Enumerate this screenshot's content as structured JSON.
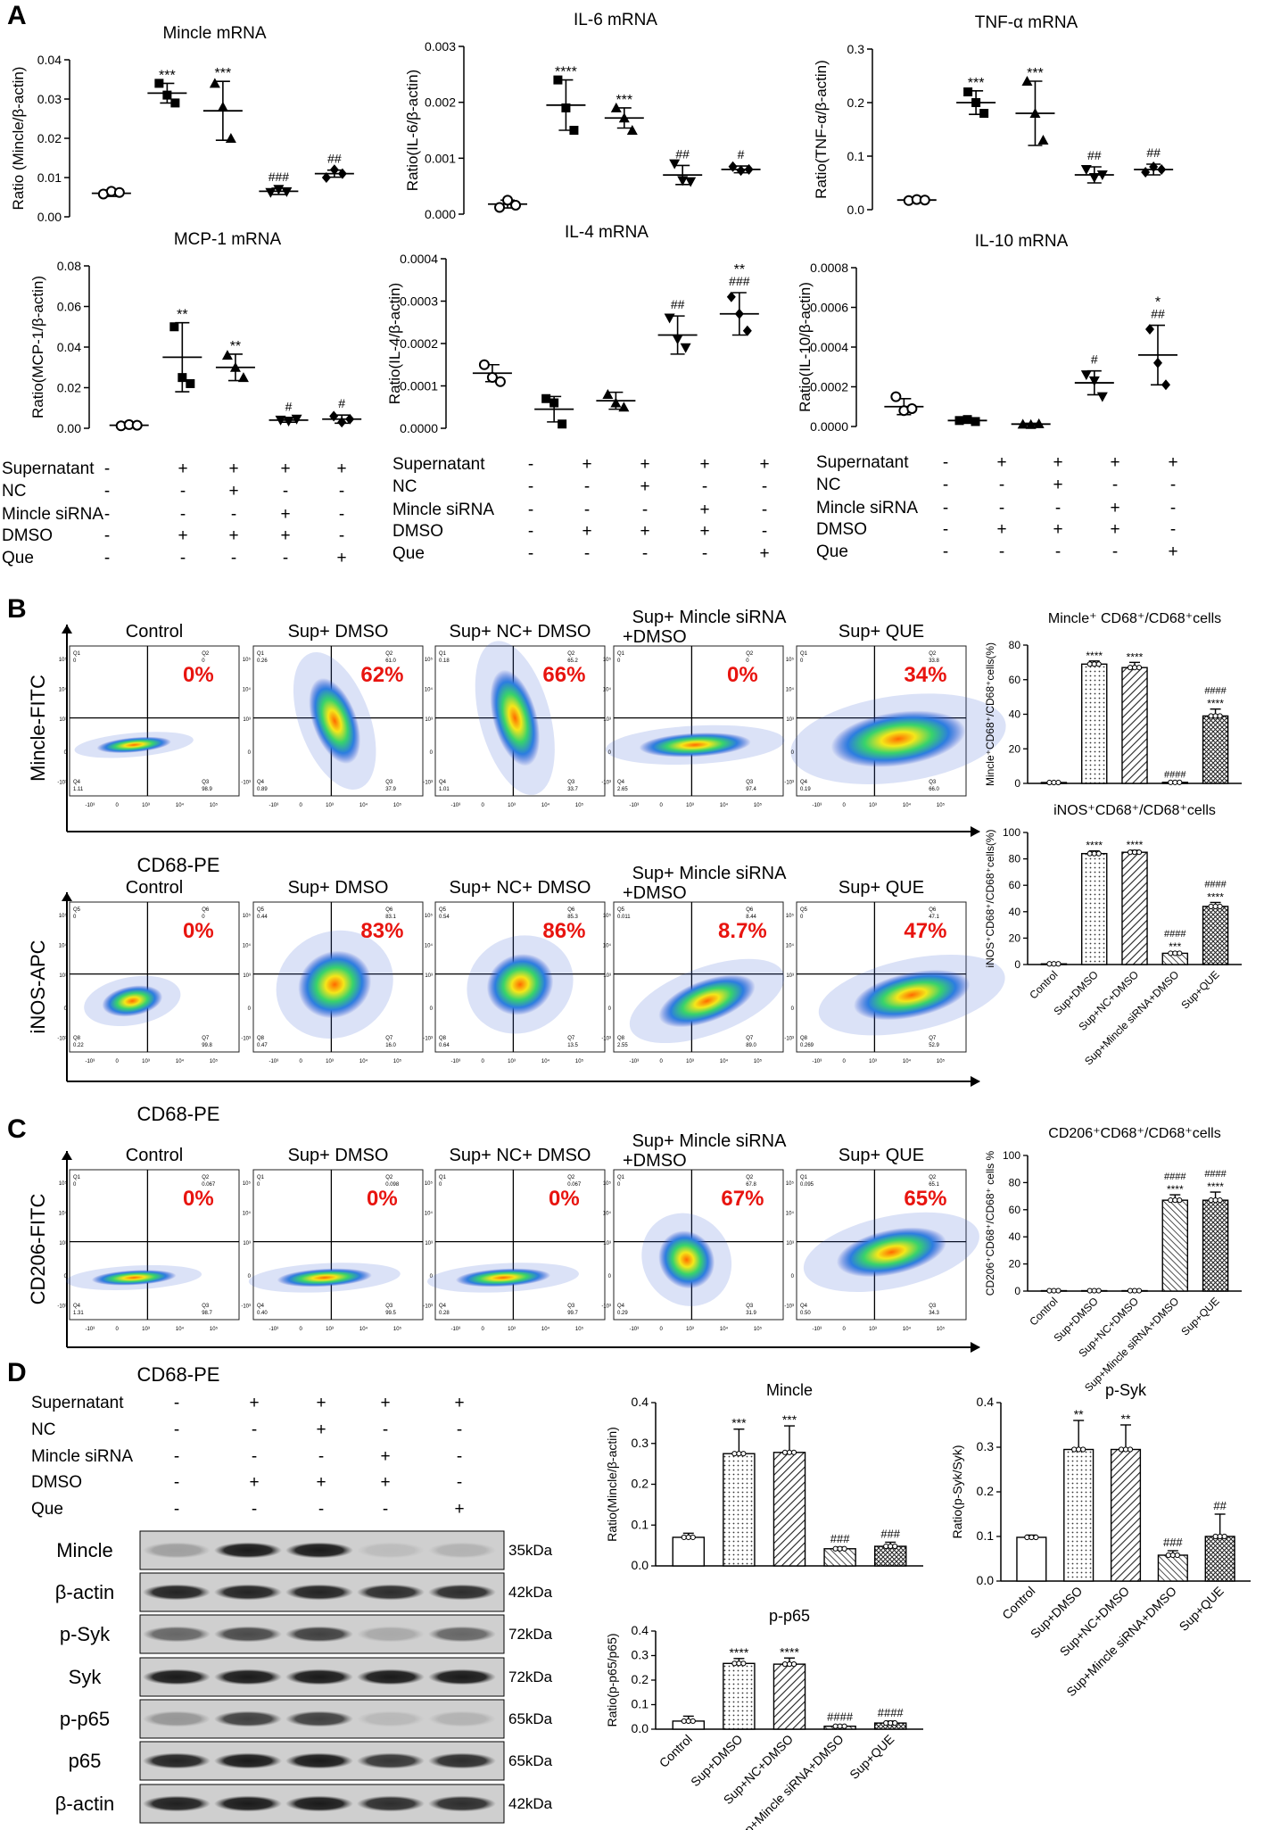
{
  "panels": {
    "A": "A",
    "B": "B",
    "C": "C",
    "D": "D"
  },
  "bar_groups_short": [
    "Control",
    "Sup+DMSO",
    "Sup+NC+DMSO",
    "Sup+Mincle siRNA+DMSO",
    "Sup+QUE"
  ],
  "panelA_conditions": {
    "rows": [
      "Supernatant",
      "NC",
      "Mincle siRNA",
      "DMSO",
      "Que"
    ],
    "signs": [
      [
        "-",
        "+",
        "+",
        "+",
        "+"
      ],
      [
        "-",
        "-",
        "+",
        "-",
        "-"
      ],
      [
        "-",
        "-",
        "-",
        "+",
        "-"
      ],
      [
        "-",
        "+",
        "+",
        "+",
        "-"
      ],
      [
        "-",
        "-",
        "-",
        "-",
        "+"
      ]
    ]
  },
  "panelD_conditions": {
    "rows": [
      "Supernatant",
      "NC",
      "Mincle siRNA",
      "DMSO",
      "Que"
    ],
    "signs": [
      [
        "-",
        "+",
        "+",
        "+",
        "+"
      ],
      [
        "-",
        "-",
        "+",
        "-",
        "-"
      ],
      [
        "-",
        "-",
        "-",
        "+",
        "-"
      ],
      [
        "-",
        "+",
        "+",
        "+",
        "-"
      ],
      [
        "-",
        "-",
        "-",
        "-",
        "+"
      ]
    ]
  },
  "flow": {
    "B_titles": [
      "Control",
      "Sup+ DMSO",
      "Sup+ NC+ DMSO",
      "Sup+ Mincle siRNA",
      "Sup+ QUE"
    ],
    "B_titles_line2": [
      "",
      "",
      "",
      "+DMSO",
      ""
    ],
    "mincle_pcts": [
      "0%",
      "62%",
      "66%",
      "0%",
      "34%"
    ],
    "inos_pcts": [
      "0%",
      "83%",
      "86%",
      "8.7%",
      "47%"
    ],
    "cd206_pcts": [
      "0%",
      "0%",
      "0%",
      "67%",
      "65%"
    ],
    "mincle_ylabel": "Mincle-FITC",
    "inos_ylabel": "iNOS-APC",
    "cd206_ylabel": "CD206-FITC",
    "xlabel": "CD68-PE",
    "mincle_quads": [
      [
        "Q1",
        "Q2",
        "Q4",
        "Q3",
        "0",
        "0",
        "1.11",
        "98.9"
      ],
      [
        "Q1",
        "Q2",
        "Q4",
        "Q3",
        "0.26",
        "61.0",
        "0.89",
        "37.9"
      ],
      [
        "Q1",
        "Q2",
        "Q4",
        "Q3",
        "0.18",
        "65.2",
        "1.01",
        "33.7"
      ],
      [
        "Q1",
        "Q2",
        "Q4",
        "Q3",
        "0",
        "0",
        "2.65",
        "97.4"
      ],
      [
        "Q1",
        "Q2",
        "Q4",
        "Q3",
        "0",
        "33.8",
        "0.19",
        "66.0"
      ]
    ],
    "inos_quads": [
      [
        "Q5",
        "Q6",
        "Q8",
        "Q7",
        "0",
        "0",
        "0.22",
        "99.8"
      ],
      [
        "Q5",
        "Q6",
        "Q8",
        "Q7",
        "0.44",
        "83.1",
        "0.47",
        "16.0"
      ],
      [
        "Q5",
        "Q6",
        "Q8",
        "Q7",
        "0.54",
        "85.3",
        "0.64",
        "13.5"
      ],
      [
        "Q5",
        "Q6",
        "Q8",
        "Q7",
        "0.011",
        "8.44",
        "2.55",
        "89.0"
      ],
      [
        "Q5",
        "Q6",
        "Q8",
        "Q7",
        "0",
        "47.1",
        "0.269",
        "52.9"
      ]
    ],
    "cd206_quads": [
      [
        "Q1",
        "Q2",
        "Q4",
        "Q3",
        "0",
        "0.067",
        "1.31",
        "98.7"
      ],
      [
        "Q1",
        "Q2",
        "Q4",
        "Q3",
        "0",
        "0.098",
        "0.40",
        "99.5"
      ],
      [
        "Q1",
        "Q2",
        "Q4",
        "Q3",
        "0",
        "0.067",
        "0.28",
        "99.7"
      ],
      [
        "Q1",
        "Q2",
        "Q4",
        "Q3",
        "0",
        "67.8",
        "0.29",
        "31.9"
      ],
      [
        "Q1",
        "Q2",
        "Q4",
        "Q3",
        "0.095",
        "65.1",
        "0.50",
        "34.3"
      ]
    ],
    "axis_tick_labels": [
      "-10³",
      "0",
      "10³",
      "10⁴",
      "10⁵"
    ]
  },
  "blot": {
    "rows": [
      "Mincle",
      "β-actin",
      "p-Syk",
      "Syk",
      "p-p65",
      "p65",
      "β-actin"
    ],
    "kda": [
      "35kDa",
      "42kDa",
      "72kDa",
      "72kDa",
      "65kDa",
      "65kDa",
      "42kDa"
    ],
    "intensities": [
      [
        0.25,
        0.95,
        0.95,
        0.1,
        0.15
      ],
      [
        0.9,
        0.9,
        0.9,
        0.85,
        0.85
      ],
      [
        0.55,
        0.7,
        0.75,
        0.2,
        0.55
      ],
      [
        0.95,
        0.95,
        0.95,
        0.95,
        0.95
      ],
      [
        0.3,
        0.75,
        0.75,
        0.12,
        0.15
      ],
      [
        0.9,
        0.95,
        0.95,
        0.8,
        0.85
      ],
      [
        0.92,
        0.95,
        0.95,
        0.85,
        0.85
      ]
    ]
  },
  "chart_data": [
    {
      "id": "A1",
      "type": "scatter",
      "title": "Mincle mRNA",
      "ylabel": "Ratio (Mincle/β-actin)",
      "ylim": [
        0,
        0.04
      ],
      "yticks": [
        "0.00",
        "0.01",
        "0.02",
        "0.03",
        "0.04"
      ],
      "means": [
        0.006,
        0.0315,
        0.027,
        0.0065,
        0.011
      ],
      "sd": [
        0.0008,
        0.0025,
        0.0075,
        0.0008,
        0.0009
      ],
      "points": [
        [
          0.0058,
          0.0065,
          0.0062
        ],
        [
          0.034,
          0.031,
          0.029
        ],
        [
          0.034,
          0.028,
          0.02
        ],
        [
          0.0062,
          0.007,
          0.0064
        ],
        [
          0.01,
          0.012,
          0.011
        ]
      ],
      "stars": [
        "",
        "***",
        "***",
        "",
        ""
      ],
      "hashes": [
        "",
        "",
        "",
        "###",
        "##"
      ],
      "markers": [
        "circle",
        "square",
        "triangle",
        "triangle-down",
        "diamond"
      ]
    },
    {
      "id": "A2",
      "type": "scatter",
      "title": "IL-6 mRNA",
      "ylabel": "Ratio(IL-6/β-actin)",
      "ylim": [
        0,
        0.003
      ],
      "yticks": [
        "0.000",
        "0.001",
        "0.002",
        "0.003"
      ],
      "means": [
        0.00018,
        0.00195,
        0.00172,
        0.0007,
        0.0008
      ],
      "sd": [
        7e-05,
        0.00045,
        0.00018,
        0.00017,
        6e-05
      ],
      "points": [
        [
          0.00012,
          0.00025,
          0.00016
        ],
        [
          0.0024,
          0.0019,
          0.0015
        ],
        [
          0.0019,
          0.00172,
          0.0015
        ],
        [
          0.0009,
          0.0006,
          0.00058
        ],
        [
          0.00085,
          0.00078,
          0.0008
        ]
      ],
      "stars": [
        "",
        "****",
        "***",
        "",
        ""
      ],
      "hashes": [
        "",
        "",
        "",
        "##",
        "#"
      ],
      "markers": [
        "circle",
        "square",
        "triangle",
        "triangle-down",
        "diamond"
      ]
    },
    {
      "id": "A3",
      "type": "scatter",
      "title": "TNF-α mRNA",
      "ylabel": "Ratio(TNF-α/β-actin)",
      "ylim": [
        0,
        0.3
      ],
      "yticks": [
        "0.0",
        "0.1",
        "0.2",
        "0.3"
      ],
      "means": [
        0.018,
        0.2,
        0.18,
        0.065,
        0.075
      ],
      "sd": [
        0.003,
        0.022,
        0.06,
        0.015,
        0.01
      ],
      "points": [
        [
          0.017,
          0.019,
          0.018
        ],
        [
          0.22,
          0.2,
          0.18
        ],
        [
          0.24,
          0.18,
          0.13
        ],
        [
          0.075,
          0.06,
          0.065
        ],
        [
          0.07,
          0.08,
          0.075
        ]
      ],
      "stars": [
        "",
        "***",
        "***",
        "",
        ""
      ],
      "hashes": [
        "",
        "",
        "",
        "##",
        "##"
      ],
      "markers": [
        "circle",
        "square",
        "triangle",
        "triangle-down",
        "diamond"
      ]
    },
    {
      "id": "A4",
      "type": "scatter",
      "title": "MCP-1 mRNA",
      "ylabel": "Ratio(MCP-1/β-actin)",
      "ylim": [
        0,
        0.08
      ],
      "yticks": [
        "0.00",
        "0.02",
        "0.04",
        "0.06",
        "0.08"
      ],
      "means": [
        0.0015,
        0.035,
        0.03,
        0.004,
        0.0045
      ],
      "sd": [
        0.0008,
        0.017,
        0.0065,
        0.001,
        0.002
      ],
      "points": [
        [
          0.0012,
          0.0018,
          0.0015
        ],
        [
          0.05,
          0.025,
          0.022
        ],
        [
          0.036,
          0.03,
          0.025
        ],
        [
          0.004,
          0.0035,
          0.0045
        ],
        [
          0.006,
          0.003,
          0.0045
        ]
      ],
      "stars": [
        "",
        "**",
        "**",
        "",
        ""
      ],
      "hashes": [
        "",
        "",
        "",
        "#",
        "#"
      ],
      "markers": [
        "circle",
        "square",
        "triangle",
        "triangle-down",
        "diamond"
      ]
    },
    {
      "id": "A5",
      "type": "scatter",
      "title": "IL-4 mRNA",
      "ylabel": "Ratio(IL-4/β-actin)",
      "ylim": [
        0,
        0.0004
      ],
      "yticks": [
        "0.0000",
        "0.0001",
        "0.0002",
        "0.0003",
        "0.0004"
      ],
      "means": [
        0.00013,
        4.5e-05,
        6.5e-05,
        0.00022,
        0.00027
      ],
      "sd": [
        2e-05,
        3e-05,
        2e-05,
        4.5e-05,
        5e-05
      ],
      "points": [
        [
          0.00015,
          0.00012,
          0.00011
        ],
        [
          7e-05,
          6e-05,
          1e-05
        ],
        [
          8e-05,
          6e-05,
          5e-05
        ],
        [
          0.00026,
          0.00021,
          0.00019
        ],
        [
          0.00031,
          0.00027,
          0.00023
        ]
      ],
      "stars": [
        "",
        "",
        "",
        "",
        "**"
      ],
      "hashes": [
        "",
        "",
        "",
        "##",
        "###"
      ],
      "markers": [
        "circle",
        "square",
        "triangle",
        "triangle-down",
        "diamond"
      ]
    },
    {
      "id": "A6",
      "type": "scatter",
      "title": "IL-10 mRNA",
      "ylabel": "Ratio(IL-10/β-actin)",
      "ylim": [
        0,
        0.0008
      ],
      "yticks": [
        "0.0000",
        "0.0002",
        "0.0004",
        "0.0006",
        "0.0008"
      ],
      "means": [
        0.0001,
        3e-05,
        1.2e-05,
        0.00022,
        0.00036
      ],
      "sd": [
        4e-05,
        8e-06,
        4e-06,
        6e-05,
        0.00015
      ],
      "points": [
        [
          0.00015,
          8e-05,
          9e-05
        ],
        [
          3e-05,
          3.5e-05,
          2.5e-05
        ],
        [
          1.2e-05,
          1e-05,
          1.4e-05
        ],
        [
          0.00026,
          0.00023,
          0.00015
        ],
        [
          0.00049,
          0.00032,
          0.00021
        ]
      ],
      "stars": [
        "",
        "",
        "",
        "",
        "*"
      ],
      "hashes": [
        "",
        "",
        "",
        "#",
        "##"
      ],
      "markers": [
        "circle",
        "square",
        "triangle",
        "triangle-down",
        "diamond"
      ]
    },
    {
      "id": "B1",
      "type": "bar",
      "title": "Mincle⁺ CD68⁺/CD68⁺cells",
      "ylabel": "Mincle⁺CD68⁺/CD68⁺cells(%)",
      "ylim": [
        0,
        80
      ],
      "yticks": [
        "0",
        "20",
        "40",
        "60",
        "80"
      ],
      "values": [
        0.5,
        69,
        67,
        0.6,
        39
      ],
      "sd": [
        0.2,
        1.8,
        3.0,
        0.2,
        4.0
      ],
      "stars": [
        "",
        "****",
        "****",
        "",
        ""
      ],
      "hashes": [
        "",
        "",
        "",
        "####",
        "####"
      ],
      "stars2": [
        "",
        "",
        "",
        "",
        "****"
      ]
    },
    {
      "id": "B2",
      "type": "bar",
      "title": "iNOS⁺CD68⁺/CD68⁺cells",
      "ylabel": "iNOS⁺CD68⁺/CD68⁺cells(%)",
      "ylim": [
        0,
        100
      ],
      "yticks": [
        "0",
        "20",
        "40",
        "60",
        "80",
        "100"
      ],
      "values": [
        0.5,
        84,
        85,
        8.5,
        44
      ],
      "sd": [
        0.2,
        2.0,
        1.5,
        1.0,
        3.0
      ],
      "stars": [
        "",
        "****",
        "****",
        "***",
        ""
      ],
      "hashes": [
        "",
        "",
        "",
        "####",
        "####"
      ],
      "stars2": [
        "",
        "",
        "",
        "",
        "****"
      ]
    },
    {
      "id": "C1",
      "type": "bar",
      "title": "CD206⁺CD68⁺/CD68⁺cells",
      "ylabel": "CD206⁺CD68⁺/CD68⁺ cells %",
      "ylim": [
        0,
        100
      ],
      "yticks": [
        "0",
        "20",
        "40",
        "60",
        "80",
        "100"
      ],
      "values": [
        0.3,
        0.3,
        0.3,
        67,
        67
      ],
      "sd": [
        0.1,
        0.1,
        0.1,
        4.0,
        6.0
      ],
      "stars": [
        "",
        "",
        "",
        "****",
        "****"
      ],
      "hashes": [
        "",
        "",
        "",
        "####",
        "####"
      ],
      "stars2": [
        "",
        "",
        "",
        "",
        ""
      ]
    },
    {
      "id": "D1",
      "type": "bar",
      "title": "Mincle",
      "ylabel": "Ratio(Mincle/β-actin)",
      "ylim": [
        0,
        0.4
      ],
      "yticks": [
        "0.0",
        "0.1",
        "0.2",
        "0.3",
        "0.4"
      ],
      "values": [
        0.07,
        0.275,
        0.278,
        0.042,
        0.048
      ],
      "sd": [
        0.01,
        0.06,
        0.065,
        0.004,
        0.01
      ],
      "stars": [
        "",
        "***",
        "***",
        "",
        ""
      ],
      "hashes": [
        "",
        "",
        "",
        "###",
        "###"
      ],
      "stars2": [
        "",
        "",
        "",
        "",
        ""
      ]
    },
    {
      "id": "D2",
      "type": "bar",
      "title": "p-Syk",
      "ylabel": "Ratio(p-Syk/Syk)",
      "ylim": [
        0,
        0.4
      ],
      "yticks": [
        "0.0",
        "0.1",
        "0.2",
        "0.3",
        "0.4"
      ],
      "values": [
        0.098,
        0.295,
        0.295,
        0.058,
        0.1
      ],
      "sd": [
        0.005,
        0.065,
        0.055,
        0.01,
        0.05
      ],
      "stars": [
        "",
        "**",
        "**",
        "",
        ""
      ],
      "hashes": [
        "",
        "",
        "",
        "###",
        "##"
      ],
      "stars2": [
        "",
        "",
        "",
        "",
        ""
      ]
    },
    {
      "id": "D3",
      "type": "bar",
      "title": "p-p65",
      "ylabel": "Ratio(p-p65/p65)",
      "ylim": [
        0,
        0.4
      ],
      "yticks": [
        "0.0",
        "0.1",
        "0.2",
        "0.3",
        "0.4"
      ],
      "values": [
        0.033,
        0.268,
        0.265,
        0.012,
        0.025
      ],
      "sd": [
        0.02,
        0.02,
        0.025,
        0.004,
        0.008
      ],
      "stars": [
        "",
        "****",
        "****",
        "",
        ""
      ],
      "hashes": [
        "",
        "",
        "",
        "####",
        "####"
      ],
      "stars2": [
        "",
        "",
        "",
        "",
        ""
      ]
    }
  ]
}
